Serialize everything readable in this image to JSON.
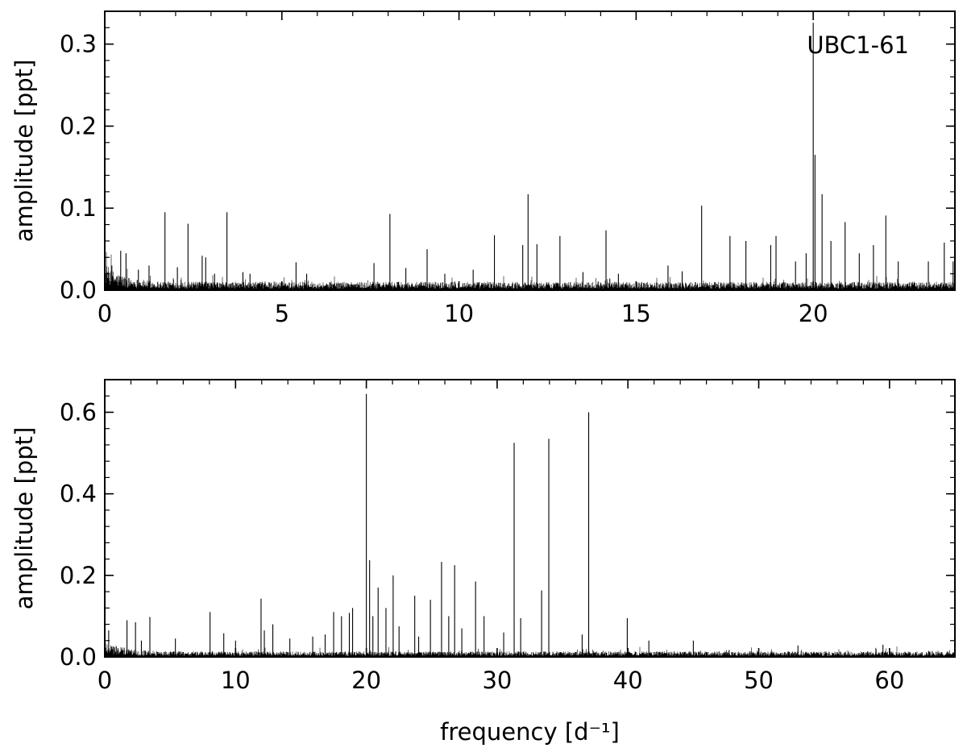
{
  "chart_data": [
    {
      "type": "line",
      "panel": "top",
      "annotation": "UBC1-61",
      "xlabel": "",
      "ylabel": "amplitude [ppt]",
      "xlim": [
        0,
        24
      ],
      "ylim": [
        0,
        0.34
      ],
      "xticks": [
        0,
        5,
        10,
        15,
        20
      ],
      "xtick_labels": [
        "0",
        "5",
        "10",
        "15",
        "20"
      ],
      "yticks": [
        0.0,
        0.1,
        0.2,
        0.3
      ],
      "ytick_labels": [
        "0.0",
        "0.1",
        "0.2",
        "0.3"
      ],
      "x_minor_step": 1,
      "y_minor_step": 0.02,
      "grid": false,
      "noise_level": 0.006,
      "peaks": [
        {
          "x": 0.1,
          "y": 0.022
        },
        {
          "x": 0.2,
          "y": 0.03
        },
        {
          "x": 0.45,
          "y": 0.048
        },
        {
          "x": 0.6,
          "y": 0.045
        },
        {
          "x": 0.95,
          "y": 0.025
        },
        {
          "x": 1.25,
          "y": 0.03
        },
        {
          "x": 1.7,
          "y": 0.095
        },
        {
          "x": 2.05,
          "y": 0.028
        },
        {
          "x": 2.35,
          "y": 0.081
        },
        {
          "x": 2.75,
          "y": 0.042
        },
        {
          "x": 2.85,
          "y": 0.04
        },
        {
          "x": 3.1,
          "y": 0.02
        },
        {
          "x": 3.45,
          "y": 0.095
        },
        {
          "x": 3.9,
          "y": 0.022
        },
        {
          "x": 4.1,
          "y": 0.02
        },
        {
          "x": 5.4,
          "y": 0.034
        },
        {
          "x": 5.7,
          "y": 0.02
        },
        {
          "x": 7.6,
          "y": 0.033
        },
        {
          "x": 8.05,
          "y": 0.093
        },
        {
          "x": 8.5,
          "y": 0.027
        },
        {
          "x": 9.1,
          "y": 0.05
        },
        {
          "x": 9.6,
          "y": 0.02
        },
        {
          "x": 10.4,
          "y": 0.025
        },
        {
          "x": 11.0,
          "y": 0.067
        },
        {
          "x": 11.8,
          "y": 0.055
        },
        {
          "x": 11.95,
          "y": 0.117
        },
        {
          "x": 12.2,
          "y": 0.056
        },
        {
          "x": 12.85,
          "y": 0.066
        },
        {
          "x": 13.5,
          "y": 0.022
        },
        {
          "x": 14.15,
          "y": 0.073
        },
        {
          "x": 14.5,
          "y": 0.02
        },
        {
          "x": 15.9,
          "y": 0.03
        },
        {
          "x": 16.3,
          "y": 0.023
        },
        {
          "x": 16.85,
          "y": 0.103
        },
        {
          "x": 17.65,
          "y": 0.066
        },
        {
          "x": 18.1,
          "y": 0.06
        },
        {
          "x": 18.8,
          "y": 0.055
        },
        {
          "x": 18.95,
          "y": 0.066
        },
        {
          "x": 19.5,
          "y": 0.035
        },
        {
          "x": 19.8,
          "y": 0.045
        },
        {
          "x": 20.0,
          "y": 0.326
        },
        {
          "x": 20.05,
          "y": 0.165
        },
        {
          "x": 20.25,
          "y": 0.117
        },
        {
          "x": 20.5,
          "y": 0.06
        },
        {
          "x": 20.9,
          "y": 0.083
        },
        {
          "x": 21.3,
          "y": 0.045
        },
        {
          "x": 21.7,
          "y": 0.055
        },
        {
          "x": 22.05,
          "y": 0.091
        },
        {
          "x": 22.4,
          "y": 0.035
        },
        {
          "x": 23.25,
          "y": 0.035
        },
        {
          "x": 23.7,
          "y": 0.058
        },
        {
          "x": 23.95,
          "y": 0.035
        }
      ]
    },
    {
      "type": "line",
      "panel": "bottom",
      "xlabel": "frequency [d⁻¹]",
      "ylabel": "amplitude [ppt]",
      "xlim": [
        0,
        65
      ],
      "ylim": [
        0,
        0.68
      ],
      "xticks": [
        0,
        10,
        20,
        30,
        40,
        50,
        60
      ],
      "xtick_labels": [
        "0",
        "10",
        "20",
        "30",
        "40",
        "50",
        "60"
      ],
      "yticks": [
        0.0,
        0.2,
        0.4,
        0.6
      ],
      "ytick_labels": [
        "0.0",
        "0.2",
        "0.4",
        "0.6"
      ],
      "x_minor_step": 2,
      "y_minor_step": 0.04,
      "grid": false,
      "noise_level": 0.008,
      "peaks": [
        {
          "x": 0.3,
          "y": 0.065
        },
        {
          "x": 1.7,
          "y": 0.09
        },
        {
          "x": 2.35,
          "y": 0.085
        },
        {
          "x": 2.8,
          "y": 0.04
        },
        {
          "x": 3.45,
          "y": 0.098
        },
        {
          "x": 5.4,
          "y": 0.045
        },
        {
          "x": 8.05,
          "y": 0.11
        },
        {
          "x": 9.1,
          "y": 0.058
        },
        {
          "x": 10.0,
          "y": 0.04
        },
        {
          "x": 11.95,
          "y": 0.143
        },
        {
          "x": 12.2,
          "y": 0.065
        },
        {
          "x": 12.85,
          "y": 0.08
        },
        {
          "x": 14.15,
          "y": 0.045
        },
        {
          "x": 15.9,
          "y": 0.05
        },
        {
          "x": 16.85,
          "y": 0.055
        },
        {
          "x": 17.5,
          "y": 0.11
        },
        {
          "x": 18.1,
          "y": 0.1
        },
        {
          "x": 18.7,
          "y": 0.108
        },
        {
          "x": 18.95,
          "y": 0.12
        },
        {
          "x": 20.0,
          "y": 0.645
        },
        {
          "x": 20.25,
          "y": 0.237
        },
        {
          "x": 20.5,
          "y": 0.1
        },
        {
          "x": 20.9,
          "y": 0.17
        },
        {
          "x": 21.5,
          "y": 0.12
        },
        {
          "x": 22.05,
          "y": 0.2
        },
        {
          "x": 22.5,
          "y": 0.075
        },
        {
          "x": 23.7,
          "y": 0.15
        },
        {
          "x": 24.0,
          "y": 0.05
        },
        {
          "x": 24.9,
          "y": 0.14
        },
        {
          "x": 25.75,
          "y": 0.233
        },
        {
          "x": 26.3,
          "y": 0.1
        },
        {
          "x": 26.75,
          "y": 0.225
        },
        {
          "x": 27.3,
          "y": 0.07
        },
        {
          "x": 28.35,
          "y": 0.185
        },
        {
          "x": 29.0,
          "y": 0.1
        },
        {
          "x": 30.5,
          "y": 0.06
        },
        {
          "x": 31.3,
          "y": 0.525
        },
        {
          "x": 31.8,
          "y": 0.095
        },
        {
          "x": 33.4,
          "y": 0.163
        },
        {
          "x": 33.95,
          "y": 0.535
        },
        {
          "x": 36.5,
          "y": 0.055
        },
        {
          "x": 37.0,
          "y": 0.6
        },
        {
          "x": 39.95,
          "y": 0.095
        },
        {
          "x": 41.6,
          "y": 0.04
        },
        {
          "x": 45.0,
          "y": 0.04
        },
        {
          "x": 53.0,
          "y": 0.028
        },
        {
          "x": 59.5,
          "y": 0.03
        }
      ]
    }
  ]
}
